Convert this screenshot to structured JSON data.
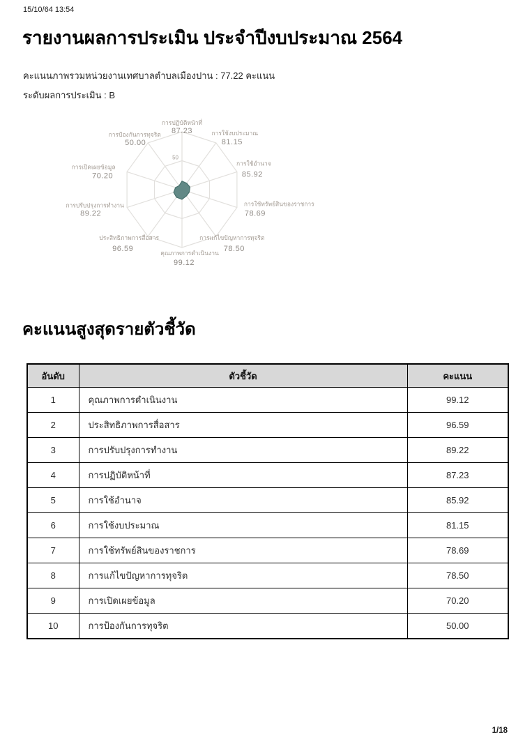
{
  "page": {
    "timestamp": "15/10/64 13:54",
    "page_number": "1/18"
  },
  "header": {
    "title": "รายงานผลการประเมิน ประจำปีงบประมาณ 2564"
  },
  "summary": {
    "overall_score_line": "คะแนนภาพรวมหน่วยงานเทศบาลตำบลเมืองปาน : 77.22 คะแนน",
    "rating_line": "ระดับผลการประเมิน : B"
  },
  "chart_data": {
    "type": "radar",
    "categories": [
      "การปฏิบัติหน้าที่",
      "การใช้งบประมาณ",
      "การใช้อำนาจ",
      "การใช้ทรัพย์สินของราชการ",
      "การแก้ไขปัญหาการทุจริต",
      "คุณภาพการดำเนินงาน",
      "ประสิทธิภาพการสื่อสาร",
      "การปรับปรุงการทำงาน",
      "การเปิดเผยข้อมูล",
      "การป้องกันการทุจริต"
    ],
    "values": [
      87.23,
      81.15,
      85.92,
      78.69,
      78.5,
      99.12,
      96.59,
      89.22,
      70.2,
      50.0
    ],
    "values_display": [
      "87.23",
      "81.15",
      "85.92",
      "78.69",
      "78.50",
      "99.12",
      "96.59",
      "89.22",
      "70.20",
      "50.00"
    ],
    "axis_max": 100,
    "rings": [
      50,
      100
    ],
    "tick_label": "50",
    "legend": "none",
    "grid": true,
    "colors": {
      "fill": "#5a8380",
      "stroke": "#47706c",
      "grid": "#e2e0dd",
      "label": "#a39b93",
      "value": "#908b86",
      "tick": "#a6a09a"
    }
  },
  "section": {
    "title": "คะแนนสูงสุดรายตัวชี้วัด"
  },
  "table": {
    "headers": [
      "อันดับ",
      "ตัวชี้วัด",
      "คะแนน"
    ],
    "rows": [
      [
        "1",
        "คุณภาพการดำเนินงาน",
        "99.12"
      ],
      [
        "2",
        "ประสิทธิภาพการสื่อสาร",
        "96.59"
      ],
      [
        "3",
        "การปรับปรุงการทำงาน",
        "89.22"
      ],
      [
        "4",
        "การปฏิบัติหน้าที่",
        "87.23"
      ],
      [
        "5",
        "การใช้อำนาจ",
        "85.92"
      ],
      [
        "6",
        "การใช้งบประมาณ",
        "81.15"
      ],
      [
        "7",
        "การใช้ทรัพย์สินของราชการ",
        "78.69"
      ],
      [
        "8",
        "การแก้ไขปัญหาการทุจริต",
        "78.50"
      ],
      [
        "9",
        "การเปิดเผยข้อมูล",
        "70.20"
      ],
      [
        "10",
        "การป้องกันการทุจริต",
        "50.00"
      ]
    ]
  }
}
